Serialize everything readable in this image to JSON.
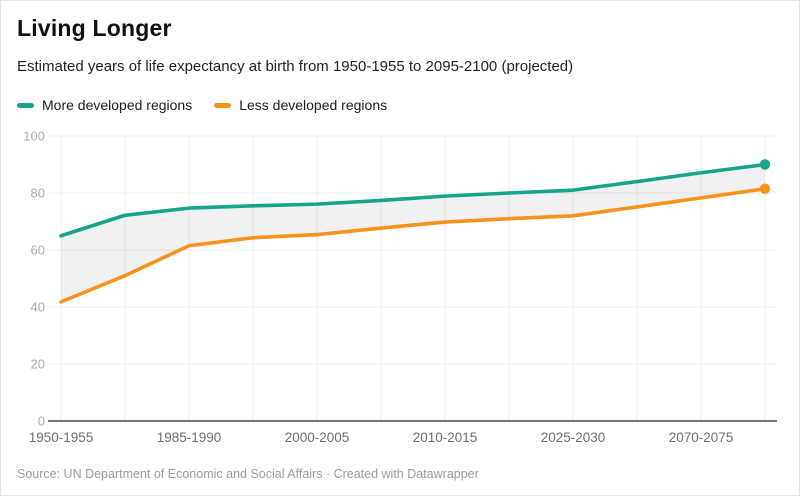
{
  "header": {
    "title": "Living Longer",
    "subtitle": "Estimated years of life expectancy at birth from 1950-1955 to 2095-2100 (projected)"
  },
  "legend": {
    "items": [
      {
        "label": "More developed regions",
        "color": "#14a58a"
      },
      {
        "label": "Less developed regions",
        "color": "#f7921d"
      }
    ]
  },
  "footer": {
    "source": "Source: UN Department of Economic and Social Affairs · Created with Datawrapper"
  },
  "chart_data": {
    "type": "line",
    "title": "Living Longer",
    "subtitle": "Estimated years of life expectancy at birth from 1950-1955 to 2095-2100 (projected)",
    "categories": [
      "1950-1955",
      "",
      "1985-1990",
      "",
      "2000-2005",
      "",
      "2010-2015",
      "",
      "2025-2030",
      "",
      "2070-2075",
      ""
    ],
    "series": [
      {
        "name": "More developed regions",
        "color": "#14a58a",
        "values": [
          65.0,
          72.2,
          74.7,
          75.5,
          76.1,
          77.4,
          78.9,
          80.0,
          81.0,
          84.0,
          87.1,
          90.0
        ]
      },
      {
        "name": "Less developed regions",
        "color": "#f7921d",
        "values": [
          41.8,
          51.0,
          61.5,
          64.3,
          65.4,
          67.7,
          69.8,
          71.0,
          72.0,
          75.1,
          78.3,
          81.5
        ]
      }
    ],
    "ylim": [
      0,
      100
    ],
    "yticks": [
      0,
      20,
      40,
      60,
      80,
      100
    ],
    "x_axis_labeled_ticks": [
      "1950-1955",
      "1985-1990",
      "2000-2005",
      "2010-2015",
      "2025-2030",
      "2070-2075"
    ],
    "legend_position": "top-left",
    "grid": "on",
    "area_between_series": "gray shaded band between the two lines",
    "end_point_markers": "dot on last point of each series",
    "colors": {
      "grid_line": "#ececec",
      "axis_baseline": "#777777",
      "area_fill": "rgba(0,0,0,0.055)",
      "y_tick_label": "#ababab",
      "x_tick_label": "#6e6e6e"
    }
  }
}
